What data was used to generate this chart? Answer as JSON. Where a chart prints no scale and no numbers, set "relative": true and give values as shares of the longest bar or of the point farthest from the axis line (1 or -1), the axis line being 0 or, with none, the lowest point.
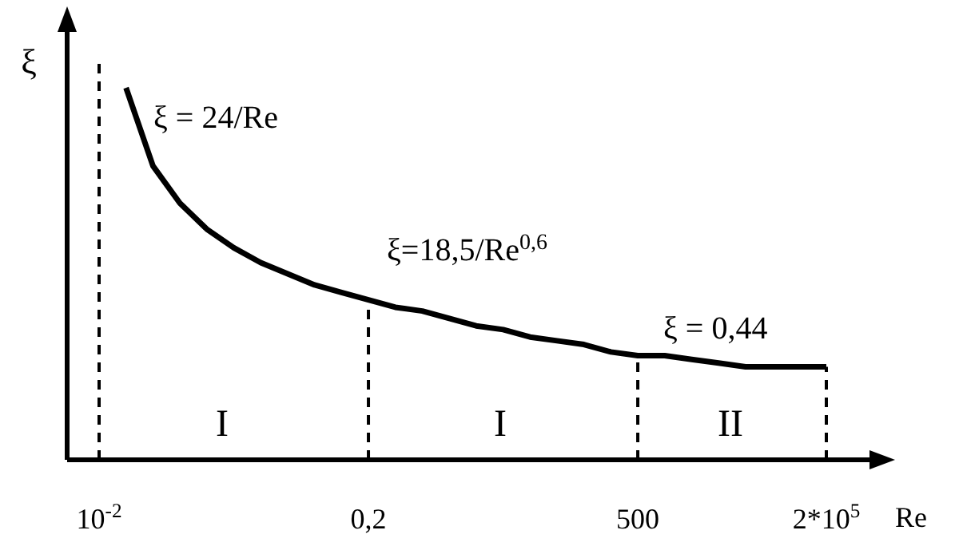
{
  "chart_data": {
    "type": "line",
    "relative": true,
    "xlabel": "Re",
    "ylabel": "ξ",
    "color": "#000000",
    "categories": [
      "10$^{-2}$",
      null,
      null,
      null,
      null,
      null,
      null,
      null,
      null,
      null,
      "0,2",
      null,
      null,
      null,
      null,
      null,
      null,
      null,
      null,
      null,
      "500",
      null,
      null,
      null,
      null,
      null,
      null,
      "2*10$^{5}$"
    ],
    "values": [
      null,
      1.0,
      0.79,
      0.69,
      0.62,
      0.57,
      0.53,
      0.5,
      0.47,
      0.45,
      0.43,
      0.41,
      0.4,
      0.38,
      0.36,
      0.35,
      0.33,
      0.32,
      0.31,
      0.29,
      0.28,
      0.28,
      0.27,
      0.26,
      0.25,
      0.25,
      0.25,
      0.25
    ],
    "ref_lines": [
      {
        "axis": "x",
        "value": "10$^{-2}$",
        "line_style": "dashed"
      },
      {
        "axis": "x",
        "value": "0,2",
        "line_style": "dashed"
      },
      {
        "axis": "x",
        "value": "500",
        "line_style": "dashed"
      },
      {
        "axis": "x",
        "value": "2*10$^{5}$",
        "line_style": "dashed"
      }
    ],
    "annotations": [
      "ξ = 24/Re",
      "ξ=18,5/Re$^{0,6}$",
      "ξ = 0,44",
      "I",
      "I",
      "II"
    ]
  }
}
